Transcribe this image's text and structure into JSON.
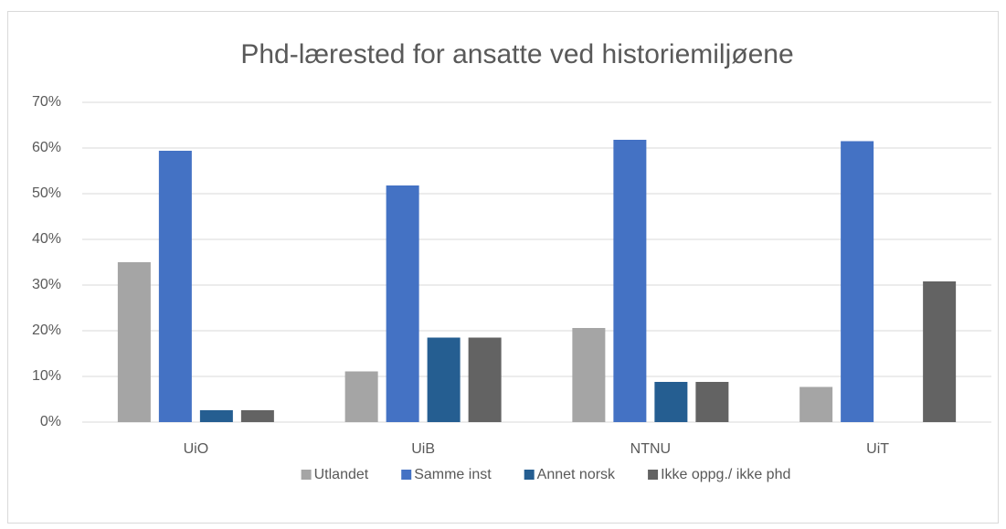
{
  "chart_data": {
    "type": "bar",
    "title": "Phd-lærested for ansatte ved historiemiljøene",
    "categories": [
      "UiO",
      "UiB",
      "NTNU",
      "UiT"
    ],
    "series": [
      {
        "name": "Utlandet",
        "color": "#a5a5a5",
        "values": [
          35.0,
          11.1,
          20.6,
          7.7
        ]
      },
      {
        "name": "Samme inst",
        "color": "#4472c4",
        "values": [
          59.4,
          51.8,
          61.8,
          61.5
        ]
      },
      {
        "name": "Annet norsk",
        "color": "#255e91",
        "values": [
          2.6,
          18.5,
          8.8,
          0
        ]
      },
      {
        "name": "Ikke oppg./ ikke phd",
        "color": "#636363",
        "values": [
          2.6,
          18.5,
          8.8,
          30.8
        ]
      }
    ],
    "ylim": [
      0,
      70
    ],
    "yticks": [
      {
        "value": 0,
        "label": "0%"
      },
      {
        "value": 10,
        "label": "10%"
      },
      {
        "value": 20,
        "label": "20%"
      },
      {
        "value": 30,
        "label": "30%"
      },
      {
        "value": 40,
        "label": "40%"
      },
      {
        "value": 50,
        "label": "50%"
      },
      {
        "value": 60,
        "label": "60%"
      },
      {
        "value": 70,
        "label": "70%"
      }
    ],
    "grid": true,
    "legend": "bottom"
  }
}
